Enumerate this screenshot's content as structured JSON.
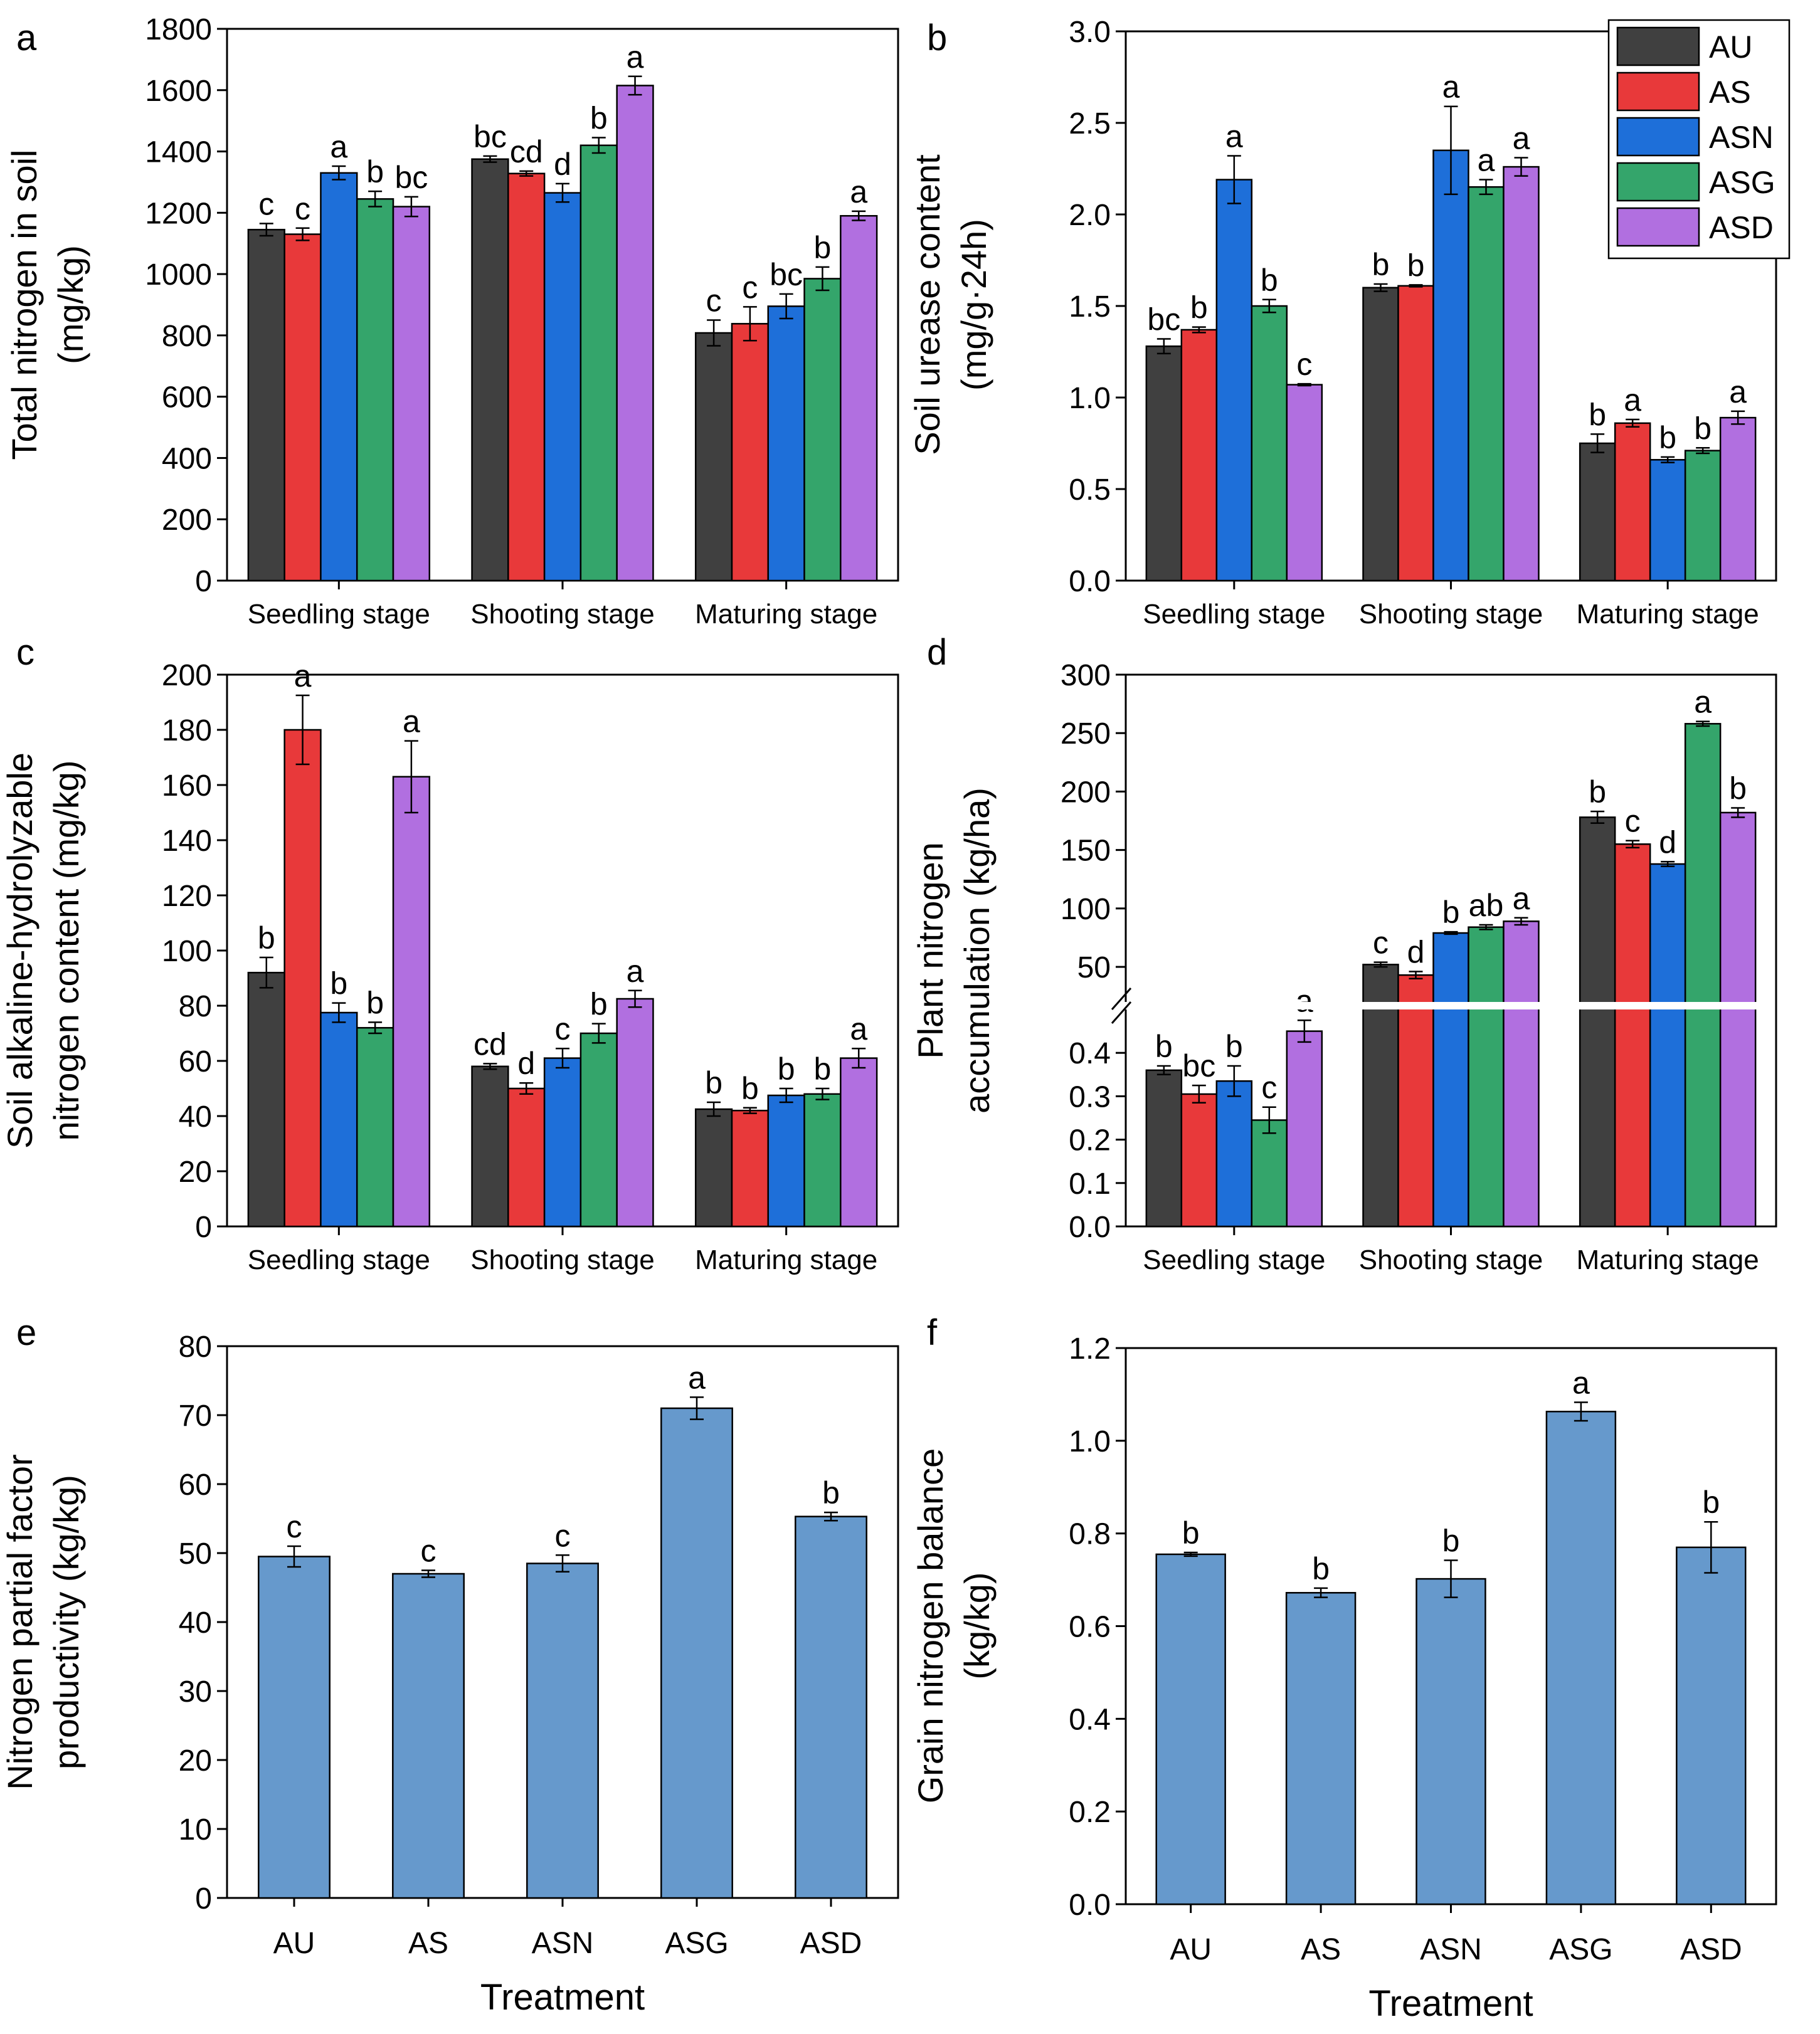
{
  "legend": {
    "entries": [
      {
        "label": "AU",
        "color": "#404040"
      },
      {
        "label": "AS",
        "color": "#e8393a"
      },
      {
        "label": "ASN",
        "color": "#1e6fd9"
      },
      {
        "label": "ASG",
        "color": "#34a56b"
      },
      {
        "label": "ASD",
        "color": "#b16fe0"
      }
    ]
  },
  "chart_data": [
    {
      "panel": "a",
      "type": "bar",
      "ylabel": [
        "Total  nitrogen in soil",
        "(mg/kg)"
      ],
      "ylim": [
        0,
        1800
      ],
      "yticks": [
        0,
        200,
        400,
        600,
        800,
        1000,
        1200,
        1400,
        1600,
        1800
      ],
      "categories": [
        "Seedling stage",
        "Shooting stage",
        "Maturing stage"
      ],
      "series": [
        {
          "name": "AU",
          "values": [
            1145,
            1375,
            808
          ],
          "errors": [
            20,
            10,
            42
          ],
          "letters": [
            "c",
            "bc",
            "c"
          ]
        },
        {
          "name": "AS",
          "values": [
            1130,
            1328,
            838
          ],
          "errors": [
            20,
            8,
            55
          ],
          "letters": [
            "c",
            "cd",
            "c"
          ]
        },
        {
          "name": "ASN",
          "values": [
            1330,
            1265,
            895
          ],
          "errors": [
            22,
            30,
            40
          ],
          "letters": [
            "a",
            "d",
            "bc"
          ]
        },
        {
          "name": "ASG",
          "values": [
            1245,
            1420,
            985
          ],
          "errors": [
            25,
            25,
            38
          ],
          "letters": [
            "b",
            "b",
            "b"
          ]
        },
        {
          "name": "ASD",
          "values": [
            1220,
            1615,
            1190
          ],
          "errors": [
            32,
            30,
            15
          ],
          "letters": [
            "bc",
            "a",
            "a"
          ]
        }
      ]
    },
    {
      "panel": "b",
      "type": "bar",
      "ylabel": [
        "Soil urease content",
        "(mg/g·24h)"
      ],
      "ylim": [
        0,
        3.0
      ],
      "yticks": [
        0.0,
        0.5,
        1.0,
        1.5,
        2.0,
        2.5,
        3.0
      ],
      "yticklabels": [
        "0.0",
        "0.5",
        "1.0",
        "1.5",
        "2.0",
        "2.5",
        "3.0"
      ],
      "categories": [
        "Seedling stage",
        "Shooting stage",
        "Maturing stage"
      ],
      "series": [
        {
          "name": "AU",
          "values": [
            1.28,
            1.6,
            0.75
          ],
          "errors": [
            0.04,
            0.02,
            0.05
          ],
          "letters": [
            "bc",
            "b",
            "b"
          ]
        },
        {
          "name": "AS",
          "values": [
            1.37,
            1.61,
            0.86
          ],
          "errors": [
            0.015,
            0.005,
            0.02
          ],
          "letters": [
            "b",
            "b",
            "a"
          ]
        },
        {
          "name": "ASN",
          "values": [
            2.19,
            2.35,
            0.66
          ],
          "errors": [
            0.13,
            0.24,
            0.015
          ],
          "letters": [
            "a",
            "a",
            "b"
          ]
        },
        {
          "name": "ASG",
          "values": [
            1.5,
            2.15,
            0.71
          ],
          "errors": [
            0.035,
            0.04,
            0.015
          ],
          "letters": [
            "b",
            "a",
            "b"
          ]
        },
        {
          "name": "ASD",
          "values": [
            1.07,
            2.26,
            0.89
          ],
          "errors": [
            0.005,
            0.05,
            0.035
          ],
          "letters": [
            "c",
            "a",
            "a"
          ]
        }
      ]
    },
    {
      "panel": "c",
      "type": "bar",
      "ylabel": [
        "Soil alkaline-hydrolyzable",
        "nitrogen content (mg/kg)"
      ],
      "ylim": [
        0,
        200
      ],
      "yticks": [
        0,
        20,
        40,
        60,
        80,
        100,
        120,
        140,
        160,
        180,
        200
      ],
      "categories": [
        "Seedling stage",
        "Shooting stage",
        "Maturing stage"
      ],
      "series": [
        {
          "name": "AU",
          "values": [
            92,
            58,
            42.5
          ],
          "errors": [
            5.5,
            1,
            2.5
          ],
          "letters": [
            "b",
            "cd",
            "b"
          ]
        },
        {
          "name": "AS",
          "values": [
            180,
            50,
            42
          ],
          "errors": [
            12.5,
            2,
            1
          ],
          "letters": [
            "a",
            "d",
            "b"
          ]
        },
        {
          "name": "ASN",
          "values": [
            77.5,
            61,
            47.5
          ],
          "errors": [
            3.5,
            3.5,
            2.5
          ],
          "letters": [
            "b",
            "c",
            "b"
          ]
        },
        {
          "name": "ASG",
          "values": [
            72,
            70,
            48
          ],
          "errors": [
            2,
            3.5,
            2
          ],
          "letters": [
            "b",
            "b",
            "b"
          ]
        },
        {
          "name": "ASD",
          "values": [
            163,
            82.5,
            61
          ],
          "errors": [
            13,
            3,
            3.5
          ],
          "letters": [
            "a",
            "a",
            "a"
          ]
        }
      ]
    },
    {
      "panel": "d",
      "type": "bar",
      "broken_axis": true,
      "ylabel": [
        "Plant nitrogen",
        "accumulation (kg/ha)"
      ],
      "ylim_lower": [
        0,
        0.5
      ],
      "yticks_lower": [
        0.0,
        0.1,
        0.2,
        0.3,
        0.4
      ],
      "yticklabels_lower": [
        "0.0",
        "0.1",
        "0.2",
        "0.3",
        "0.4"
      ],
      "ylim_upper": [
        20,
        300
      ],
      "yticks_upper": [
        50,
        100,
        150,
        200,
        250,
        300
      ],
      "categories": [
        "Seedling stage",
        "Shooting stage",
        "Maturing stage"
      ],
      "series": [
        {
          "name": "AU",
          "values": [
            0.36,
            52,
            178
          ],
          "errors": [
            0.01,
            2,
            5
          ],
          "letters": [
            "b",
            "c",
            "b"
          ]
        },
        {
          "name": "AS",
          "values": [
            0.305,
            43,
            155
          ],
          "errors": [
            0.02,
            3,
            3
          ],
          "letters": [
            "bc",
            "d",
            "c"
          ]
        },
        {
          "name": "ASN",
          "values": [
            0.335,
            79,
            138
          ],
          "errors": [
            0.035,
            1,
            2
          ],
          "letters": [
            "b",
            "b",
            "d"
          ]
        },
        {
          "name": "ASG",
          "values": [
            0.245,
            84,
            258
          ],
          "errors": [
            0.03,
            2,
            2
          ],
          "letters": [
            "c",
            "ab",
            "a"
          ]
        },
        {
          "name": "ASD",
          "values": [
            0.45,
            89,
            182
          ],
          "errors": [
            0.025,
            3,
            4
          ],
          "letters": [
            "a",
            "a",
            "b"
          ]
        }
      ]
    },
    {
      "panel": "e",
      "type": "bar",
      "ylabel": [
        "Nitrogen partial factor",
        "productivity (kg/kg)"
      ],
      "xlabel": "Treatment",
      "ylim": [
        0,
        80
      ],
      "yticks": [
        0,
        10,
        20,
        30,
        40,
        50,
        60,
        70,
        80
      ],
      "categories": [
        "AU",
        "AS",
        "ASN",
        "ASG",
        "ASD"
      ],
      "color": "#6699cc",
      "values": [
        49.5,
        47,
        48.5,
        71,
        55.3
      ],
      "errors": [
        1.5,
        0.5,
        1.2,
        1.6,
        0.6
      ],
      "letters": [
        "c",
        "c",
        "c",
        "a",
        "b"
      ]
    },
    {
      "panel": "f",
      "type": "bar",
      "ylabel": [
        "Grain nitrogen balance",
        "(kg/kg)"
      ],
      "xlabel": "Treatment",
      "ylim": [
        0,
        1.2
      ],
      "yticks": [
        0.0,
        0.2,
        0.4,
        0.6,
        0.8,
        1.0,
        1.2
      ],
      "yticklabels": [
        "0.0",
        "0.2",
        "0.4",
        "0.6",
        "0.8",
        "1.0",
        "1.2"
      ],
      "categories": [
        "AU",
        "AS",
        "ASN",
        "ASG",
        "ASD"
      ],
      "color": "#6699cc",
      "values": [
        0.755,
        0.672,
        0.702,
        1.063,
        0.77
      ],
      "errors": [
        0.004,
        0.01,
        0.04,
        0.02,
        0.055
      ],
      "letters": [
        "b",
        "b",
        "b",
        "a",
        "b"
      ]
    }
  ]
}
